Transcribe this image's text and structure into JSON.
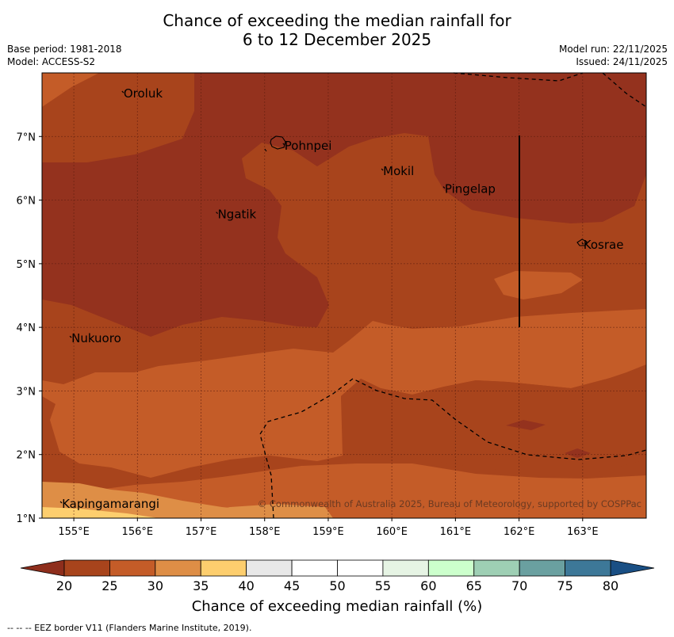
{
  "title": {
    "line1": "Chance of exceeding the median rainfall for",
    "line2": "6 to 12 December 2025"
  },
  "meta": {
    "base_period": "Base period: 1981-2018",
    "model": "Model: ACCESS-S2",
    "model_run": "Model run: 22/11/2025",
    "issued": "Issued: 24/11/2025"
  },
  "map": {
    "lon_range": [
      154.5,
      164
    ],
    "lat_range": [
      1,
      8
    ],
    "lon_ticks": [
      "155°E",
      "156°E",
      "157°E",
      "158°E",
      "159°E",
      "160°E",
      "161°E",
      "162°E",
      "163°E"
    ],
    "lat_ticks": [
      "1°N",
      "2°N",
      "3°N",
      "4°N",
      "5°N",
      "6°N",
      "7°N"
    ],
    "places": [
      {
        "name": "Oroluk",
        "lon": 155.77,
        "lat": 7.7
      },
      {
        "name": "Pohnpei",
        "lon": 158.3,
        "lat": 6.88
      },
      {
        "name": "Mokil",
        "lon": 159.85,
        "lat": 6.48
      },
      {
        "name": "Pingelap",
        "lon": 160.82,
        "lat": 6.2
      },
      {
        "name": "Ngatik",
        "lon": 157.25,
        "lat": 5.8
      },
      {
        "name": "Kosrae",
        "lon": 163.0,
        "lat": 5.32
      },
      {
        "name": "Nukuoro",
        "lon": 154.95,
        "lat": 3.85
      },
      {
        "name": "Kapingamarangi",
        "lon": 154.8,
        "lat": 1.25
      }
    ],
    "copyright": "© Commonwealth of Australia 2025, Bureau of Meteorology, supported by COSPPac"
  },
  "colorbar": {
    "ticks": [
      "20",
      "25",
      "30",
      "35",
      "40",
      "45",
      "50",
      "55",
      "60",
      "65",
      "70",
      "75",
      "80"
    ],
    "colors": [
      "#a8441c",
      "#c45c28",
      "#de8e46",
      "#fdce6e",
      "#e8e8e8",
      "#ffffff",
      "#ffffff",
      "#e6f4e4",
      "#ccffcc",
      "#9ecfb4",
      "#6aa0a0",
      "#3d7898"
    ],
    "under_color": "#8e2e1c",
    "over_color": "#1a4f84",
    "label": "Chance of exceeding median rainfall (%)"
  },
  "footer": "--  --  -- EEZ border V11 (Flanders Marine Institute, 2019)."
}
